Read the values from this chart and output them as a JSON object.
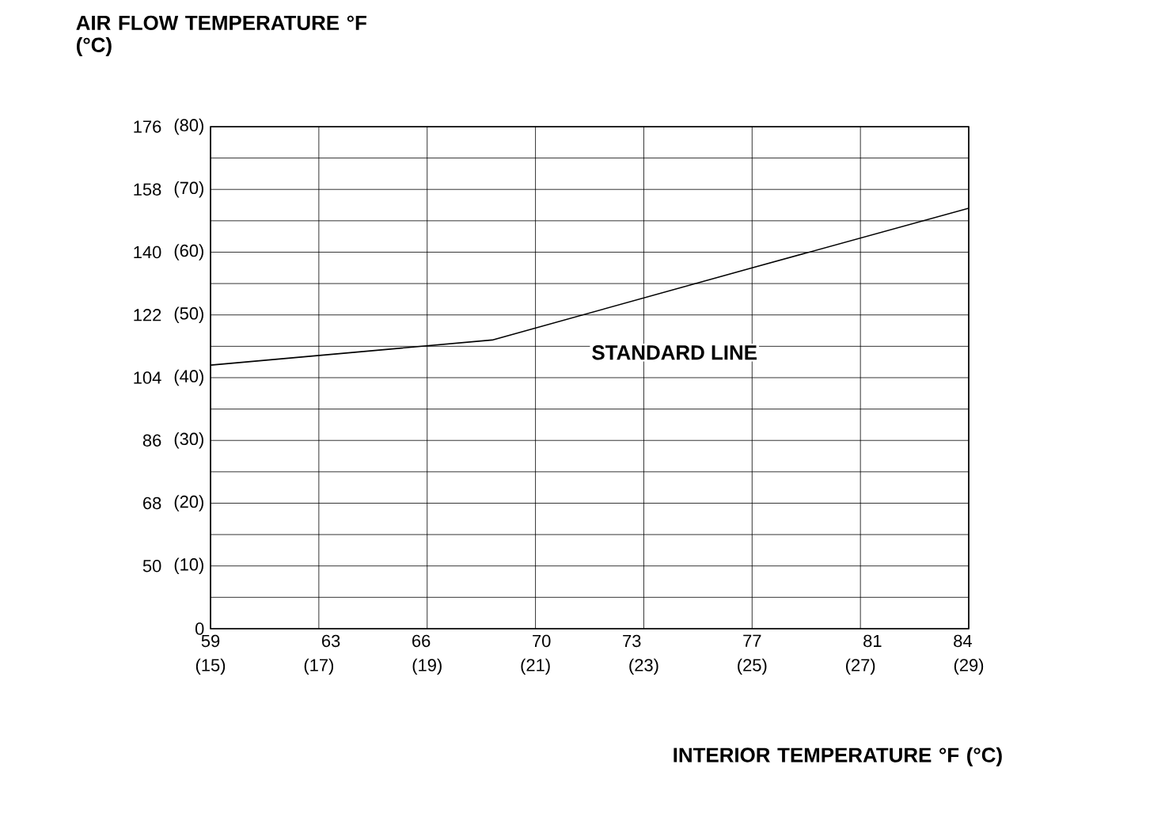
{
  "chart_data": {
    "type": "line",
    "ylabel": "AIR FLOW TEMPERATURE °F (°C)",
    "xlabel": "INTERIOR TEMPERATURE °F (°C)",
    "x": [
      15,
      20.2,
      25,
      29
    ],
    "series": [
      {
        "color": "#000000",
        "values": [
          42,
          46,
          57.5,
          67
        ]
      }
    ],
    "xlim": [
      15,
      29
    ],
    "xticks": [
      {
        "value": 15,
        "label": "(15)"
      },
      {
        "value": 17,
        "label": "(17)"
      },
      {
        "value": 19,
        "label": "(19)"
      },
      {
        "value": 21,
        "label": "(21)"
      },
      {
        "value": 23,
        "label": "(23)"
      },
      {
        "value": 25,
        "label": "(25)"
      },
      {
        "value": 27,
        "label": "(27)"
      },
      {
        "value": 29,
        "label": "(29)"
      }
    ],
    "x2lim": [
      59,
      84.2
    ],
    "x2ticks": [
      59,
      63,
      66,
      70,
      73,
      77,
      81,
      84
    ],
    "ylim": [
      0,
      80
    ],
    "yticks": [
      0,
      {
        "value": 10,
        "label": "(10)"
      },
      {
        "value": 20,
        "label": "(20)"
      },
      {
        "value": 30,
        "label": "(30)"
      },
      {
        "value": 40,
        "label": "(40)"
      },
      {
        "value": 50,
        "label": "(50)"
      },
      {
        "value": 60,
        "label": "(60)"
      },
      {
        "value": 70,
        "label": "(70)"
      },
      {
        "value": 80,
        "label": "(80)"
      }
    ],
    "y2lim": [
      32,
      176
    ],
    "y2ticks": [
      50,
      68,
      86,
      104,
      122,
      140,
      158,
      176
    ],
    "grid": true,
    "annotations": [
      "STANDARD LINE"
    ]
  }
}
